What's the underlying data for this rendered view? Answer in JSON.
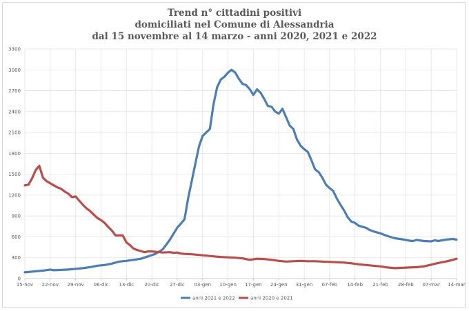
{
  "chart_data": {
    "type": "line",
    "title_lines": [
      "Trend n° cittadini positivi",
      "domiciliati nel Comune di Alessandria",
      "dal 15 novembre al 14 marzo - anni 2020, 2021 e 2022"
    ],
    "xlabel": "",
    "ylabel": "",
    "ylim": [
      0,
      3300
    ],
    "yticks": [
      0,
      300,
      600,
      900,
      1200,
      1500,
      1800,
      2100,
      2400,
      2700,
      3000,
      3300
    ],
    "x_tick_labels": [
      "15-nov",
      "22-nov",
      "29-nov",
      "06-dic",
      "13-dic",
      "20-dic",
      "27-dic",
      "03-gen",
      "10-gen",
      "17-gen",
      "24-gen",
      "31-gen",
      "07-feb",
      "14-feb",
      "21-feb",
      "28-feb",
      "07-mar",
      "14-mar"
    ],
    "x_tick_days": [
      0,
      7,
      14,
      21,
      28,
      35,
      42,
      49,
      56,
      63,
      70,
      77,
      84,
      91,
      98,
      105,
      112,
      119
    ],
    "x_range_days": [
      0,
      119
    ],
    "grid": true,
    "legend_position": "bottom",
    "series": [
      {
        "name": "anni 2021 e 2022",
        "color": "#4a7ebb",
        "points": [
          [
            0,
            90
          ],
          [
            3,
            105
          ],
          [
            5,
            115
          ],
          [
            7,
            130
          ],
          [
            8,
            120
          ],
          [
            10,
            125
          ],
          [
            12,
            130
          ],
          [
            14,
            140
          ],
          [
            16,
            150
          ],
          [
            18,
            165
          ],
          [
            20,
            185
          ],
          [
            22,
            195
          ],
          [
            24,
            215
          ],
          [
            26,
            245
          ],
          [
            28,
            255
          ],
          [
            30,
            270
          ],
          [
            32,
            285
          ],
          [
            34,
            320
          ],
          [
            36,
            355
          ],
          [
            38,
            420
          ],
          [
            39,
            490
          ],
          [
            40,
            560
          ],
          [
            42,
            730
          ],
          [
            44,
            850
          ],
          [
            45,
            1150
          ],
          [
            46,
            1400
          ],
          [
            47,
            1650
          ],
          [
            48,
            1900
          ],
          [
            49,
            2050
          ],
          [
            50,
            2100
          ],
          [
            51,
            2150
          ],
          [
            52,
            2500
          ],
          [
            53,
            2750
          ],
          [
            54,
            2860
          ],
          [
            55,
            2900
          ],
          [
            56,
            2960
          ],
          [
            57,
            3000
          ],
          [
            58,
            2960
          ],
          [
            59,
            2870
          ],
          [
            60,
            2800
          ],
          [
            61,
            2780
          ],
          [
            62,
            2720
          ],
          [
            63,
            2640
          ],
          [
            64,
            2720
          ],
          [
            65,
            2670
          ],
          [
            66,
            2580
          ],
          [
            67,
            2480
          ],
          [
            68,
            2470
          ],
          [
            69,
            2400
          ],
          [
            70,
            2370
          ],
          [
            71,
            2440
          ],
          [
            72,
            2320
          ],
          [
            73,
            2200
          ],
          [
            74,
            2150
          ],
          [
            75,
            2000
          ],
          [
            76,
            1910
          ],
          [
            77,
            1860
          ],
          [
            78,
            1820
          ],
          [
            79,
            1700
          ],
          [
            80,
            1570
          ],
          [
            81,
            1530
          ],
          [
            82,
            1450
          ],
          [
            83,
            1350
          ],
          [
            84,
            1300
          ],
          [
            85,
            1260
          ],
          [
            86,
            1150
          ],
          [
            87,
            1060
          ],
          [
            88,
            980
          ],
          [
            89,
            880
          ],
          [
            90,
            820
          ],
          [
            91,
            800
          ],
          [
            92,
            760
          ],
          [
            94,
            730
          ],
          [
            95,
            700
          ],
          [
            96,
            680
          ],
          [
            98,
            650
          ],
          [
            100,
            610
          ],
          [
            102,
            580
          ],
          [
            104,
            565
          ],
          [
            106,
            545
          ],
          [
            107,
            540
          ],
          [
            108,
            555
          ],
          [
            110,
            540
          ],
          [
            112,
            535
          ],
          [
            113,
            550
          ],
          [
            114,
            540
          ],
          [
            116,
            560
          ],
          [
            117,
            565
          ],
          [
            118,
            570
          ],
          [
            119,
            560
          ]
        ]
      },
      {
        "name": "anni 2020 e 2021",
        "color": "#be4b48",
        "points": [
          [
            0,
            1340
          ],
          [
            1,
            1350
          ],
          [
            2,
            1440
          ],
          [
            3,
            1560
          ],
          [
            4,
            1620
          ],
          [
            5,
            1450
          ],
          [
            6,
            1400
          ],
          [
            7,
            1370
          ],
          [
            8,
            1340
          ],
          [
            9,
            1310
          ],
          [
            10,
            1290
          ],
          [
            11,
            1250
          ],
          [
            12,
            1220
          ],
          [
            13,
            1170
          ],
          [
            14,
            1180
          ],
          [
            15,
            1120
          ],
          [
            16,
            1060
          ],
          [
            17,
            1010
          ],
          [
            18,
            970
          ],
          [
            19,
            920
          ],
          [
            20,
            870
          ],
          [
            21,
            840
          ],
          [
            22,
            800
          ],
          [
            23,
            740
          ],
          [
            24,
            690
          ],
          [
            25,
            620
          ],
          [
            26,
            620
          ],
          [
            27,
            620
          ],
          [
            28,
            520
          ],
          [
            29,
            480
          ],
          [
            30,
            430
          ],
          [
            31,
            410
          ],
          [
            32,
            395
          ],
          [
            33,
            380
          ],
          [
            34,
            390
          ],
          [
            35,
            390
          ],
          [
            36,
            385
          ],
          [
            38,
            375
          ],
          [
            40,
            380
          ],
          [
            41,
            370
          ],
          [
            42,
            375
          ],
          [
            43,
            360
          ],
          [
            44,
            355
          ],
          [
            46,
            350
          ],
          [
            48,
            340
          ],
          [
            50,
            330
          ],
          [
            52,
            320
          ],
          [
            54,
            310
          ],
          [
            56,
            305
          ],
          [
            58,
            300
          ],
          [
            60,
            290
          ],
          [
            62,
            270
          ],
          [
            64,
            285
          ],
          [
            66,
            280
          ],
          [
            68,
            270
          ],
          [
            70,
            255
          ],
          [
            72,
            245
          ],
          [
            74,
            250
          ],
          [
            76,
            255
          ],
          [
            78,
            250
          ],
          [
            80,
            250
          ],
          [
            82,
            245
          ],
          [
            84,
            240
          ],
          [
            86,
            235
          ],
          [
            88,
            230
          ],
          [
            90,
            220
          ],
          [
            92,
            205
          ],
          [
            94,
            195
          ],
          [
            96,
            185
          ],
          [
            98,
            175
          ],
          [
            100,
            160
          ],
          [
            102,
            150
          ],
          [
            104,
            155
          ],
          [
            106,
            160
          ],
          [
            108,
            165
          ],
          [
            110,
            175
          ],
          [
            112,
            200
          ],
          [
            114,
            225
          ],
          [
            116,
            245
          ],
          [
            118,
            270
          ],
          [
            119,
            285
          ]
        ]
      }
    ]
  }
}
